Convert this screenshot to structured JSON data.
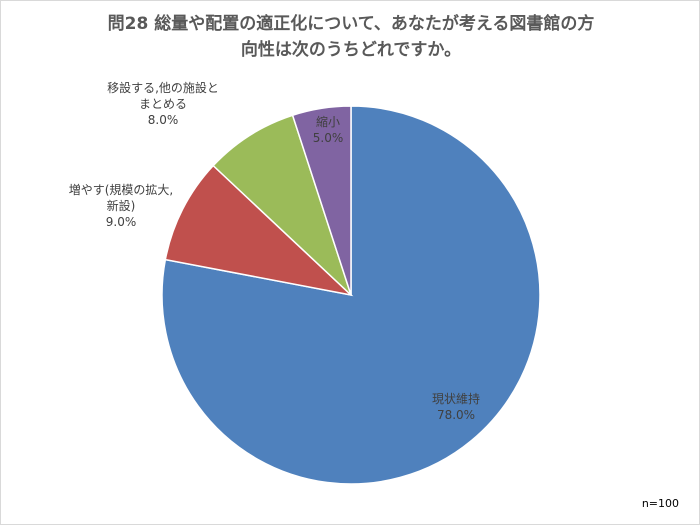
{
  "chart_data": {
    "type": "pie",
    "title_lines": [
      "問28 総量や配置の適正化について、あなたが考える図書館の方",
      "向性は次のうちどれですか。"
    ],
    "start_angle_deg": 0,
    "direction": "clockwise",
    "slices": [
      {
        "label_lines": [
          "現状維持"
        ],
        "value": 78.0,
        "value_label": "78.0%",
        "color": "#4f81bd"
      },
      {
        "label_lines": [
          "増やす(規模の拡大,",
          "新設)"
        ],
        "value": 9.0,
        "value_label": "9.0%",
        "color": "#c0504d"
      },
      {
        "label_lines": [
          "移設する,他の施設と",
          "まとめる"
        ],
        "value": 8.0,
        "value_label": "8.0%",
        "color": "#9bbb59"
      },
      {
        "label_lines": [
          "縮小"
        ],
        "value": 5.0,
        "value_label": "5.0%",
        "color": "#8064a2"
      }
    ],
    "note": "n=100"
  }
}
